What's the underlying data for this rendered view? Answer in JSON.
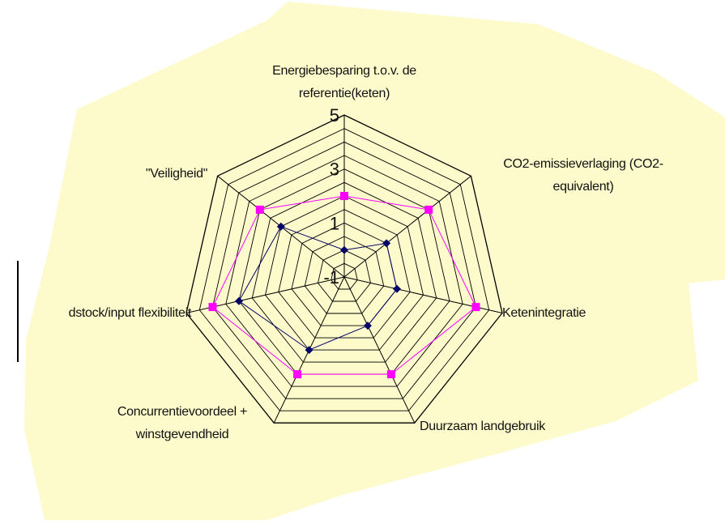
{
  "colors": {
    "background_blob": "#FDFBCB",
    "grid": "#000000",
    "series_inner": "#000066",
    "series_outer": "#FF00FF"
  },
  "chart_data": {
    "type": "radar",
    "axes": [
      [
        "Energiebesparing t.o.v. de",
        "referentie(keten)"
      ],
      [
        "CO2-emissieverlaging (CO2-",
        "equivalent)"
      ],
      [
        "Ketenintegratie"
      ],
      [
        "Duurzaam landgebruik"
      ],
      [
        "Concurrentievoordeel +",
        "winstgevendheid"
      ],
      [
        "dstock/input flexibiliteit"
      ],
      [
        "\"Veiligheid\""
      ]
    ],
    "rlim": [
      -1,
      5
    ],
    "ring_step": 0.5,
    "tick_labels": [
      {
        "value": 5,
        "label": "5"
      },
      {
        "value": 3,
        "label": "3"
      },
      {
        "value": 1,
        "label": "1"
      },
      {
        "value": -1,
        "label": "-1"
      }
    ],
    "series": [
      {
        "values": [
          0,
          1,
          1,
          1,
          2,
          3,
          2
        ],
        "color": "#000066",
        "marker": "diamond"
      },
      {
        "values": [
          2,
          3,
          4,
          3,
          3,
          4,
          3
        ],
        "color": "#FF00FF",
        "marker": "square"
      }
    ],
    "grid": true
  }
}
